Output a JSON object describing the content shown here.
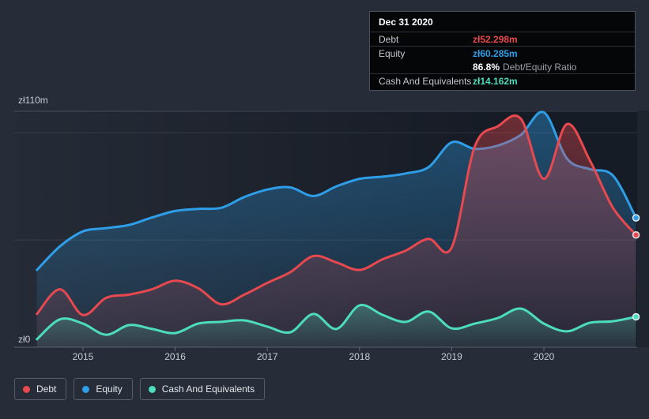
{
  "tooltip": {
    "title": "Dec 31 2020",
    "debt_label": "Debt",
    "debt_value": "zł52.298m",
    "equity_label": "Equity",
    "equity_value": "zł60.285m",
    "ratio_value": "86.8%",
    "ratio_suffix": "Debt/Equity Ratio",
    "cash_label": "Cash And Equivalents",
    "cash_value": "zł14.162m"
  },
  "legend": {
    "items": [
      {
        "series": "Debt",
        "label": "Debt"
      },
      {
        "series": "Equity",
        "label": "Equity"
      },
      {
        "series": "Cash And Equivalents",
        "label": "Cash And Equivalents"
      }
    ]
  },
  "axis": {
    "y_max_label": "zł110m",
    "y_zero_label": "zł0"
  },
  "chart_data": {
    "type": "area",
    "currency": "zł",
    "unit": "millions",
    "ylim": [
      0,
      110
    ],
    "y_gridline_values": [
      110,
      100,
      50
    ],
    "x_tick_years": [
      2015,
      2016,
      2017,
      2018,
      2019,
      2020
    ],
    "x_tick_labels": [
      "2015",
      "2016",
      "2017",
      "2018",
      "2019",
      "2020"
    ],
    "x_years": [
      2014.5,
      2014.75,
      2015,
      2015.25,
      2015.5,
      2015.75,
      2016,
      2016.25,
      2016.5,
      2016.75,
      2017,
      2017.25,
      2017.5,
      2017.75,
      2018,
      2018.25,
      2018.5,
      2018.75,
      2019,
      2019.25,
      2019.5,
      2019.75,
      2020,
      2020.25,
      2020.5,
      2020.75,
      2021
    ],
    "series": [
      {
        "name": "Equity",
        "color": "#2f9ee8",
        "values": [
          36,
          47,
          54,
          55.5,
          57,
          60.5,
          63.5,
          64.5,
          65,
          70,
          73.5,
          74.5,
          70.5,
          75,
          78.5,
          79.5,
          81,
          84,
          95.5,
          92.5,
          94,
          99,
          109.5,
          88,
          83,
          80,
          60.285
        ]
      },
      {
        "name": "Debt",
        "color": "#e8494f",
        "values": [
          15.5,
          27,
          15,
          23,
          24.5,
          27,
          31,
          27.5,
          20,
          24.5,
          30,
          35,
          42.5,
          39.5,
          36,
          41,
          45,
          50.5,
          46.5,
          93.5,
          103,
          106.5,
          78.5,
          104,
          87,
          65,
          52.298
        ]
      },
      {
        "name": "Cash And Equivalents",
        "color": "#4cdcbe",
        "values": [
          3.7,
          13,
          11,
          5.8,
          10.3,
          8.5,
          6.6,
          11,
          11.8,
          12.5,
          9.6,
          7,
          15.5,
          8.5,
          19.5,
          15.1,
          11.8,
          16.6,
          8.8,
          11,
          13.6,
          18,
          11,
          7.4,
          11.4,
          12.1,
          14.162
        ]
      }
    ],
    "legend_position": "bottom-left",
    "grid": true
  }
}
